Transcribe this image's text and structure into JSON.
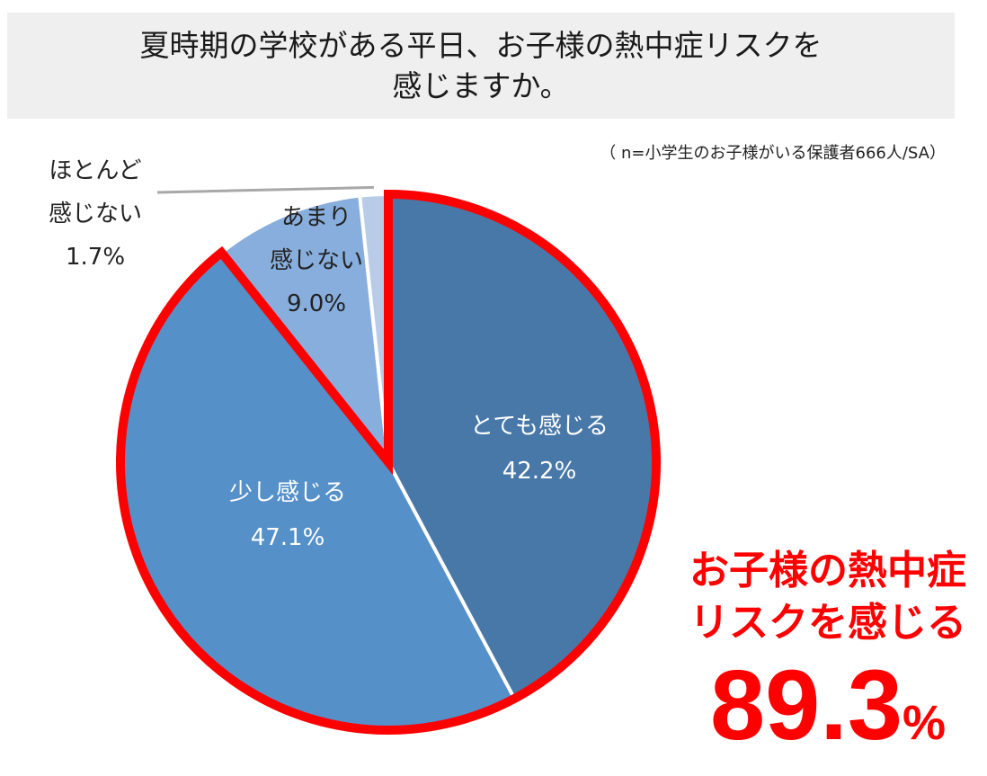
{
  "title": {
    "line1": "夏時期の学校がある平日、お子様の熱中症リスクを",
    "line2": "感じますか。"
  },
  "note": "（ n=小学生のお子様がいる保護者666人/SA）",
  "colors": {
    "accent_red": "#ff0000",
    "slice_very": "#4878a8",
    "slice_some": "#5590c8",
    "slice_little": "#88aedd",
    "slice_none": "#b8cce8"
  },
  "chart_data": {
    "type": "pie",
    "slices": [
      {
        "label_lines": [
          "とても感じる"
        ],
        "value": 42.2,
        "value_text": "42.2%",
        "color": "#4878a8"
      },
      {
        "label_lines": [
          "少し感じる"
        ],
        "value": 47.1,
        "value_text": "47.1%",
        "color": "#5590c8"
      },
      {
        "label_lines": [
          "あまり",
          "感じない"
        ],
        "value": 9.0,
        "value_text": "9.0%",
        "color": "#88aedd"
      },
      {
        "label_lines": [
          "ほとんど",
          "感じない"
        ],
        "value": 1.7,
        "value_text": "1.7%",
        "color": "#b8cce8"
      }
    ],
    "highlight": {
      "slices": [
        0,
        1
      ],
      "total_text": "89.3",
      "unit": "%"
    }
  },
  "callout": {
    "line1": "お子様の熱中症",
    "line2": "リスクを感じる",
    "value": "89.3",
    "unit": "%"
  }
}
